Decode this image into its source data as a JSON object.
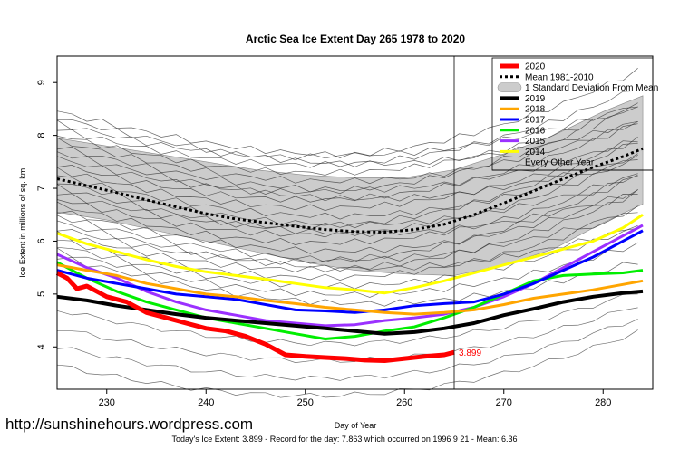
{
  "chart_data": {
    "type": "line",
    "title": "Arctic Sea Ice Extent Day 265 1978 to 2020",
    "xlabel": "Day of Year",
    "ylabel": "Ice Extent in millions of sq. km.",
    "xlim": [
      225,
      285
    ],
    "ylim": [
      3.2,
      9.5
    ],
    "xticks": [
      230,
      240,
      250,
      260,
      270,
      280
    ],
    "yticks": [
      4,
      5,
      6,
      7,
      8,
      9
    ],
    "current_day": 265,
    "current_value_label": "3.899",
    "std_band": {
      "name": "1 Standard Deviation From Mean",
      "color": "#cccccc",
      "x": [
        225,
        230,
        235,
        240,
        245,
        250,
        255,
        260,
        265,
        270,
        275,
        280,
        284
      ],
      "lower": [
        6.55,
        6.4,
        6.2,
        6.0,
        5.8,
        5.6,
        5.45,
        5.38,
        5.35,
        5.55,
        5.85,
        6.35,
        6.7
      ],
      "upper": [
        7.95,
        7.8,
        7.65,
        7.5,
        7.35,
        7.25,
        7.2,
        7.2,
        7.35,
        7.65,
        8.0,
        8.45,
        8.75
      ]
    },
    "series": [
      {
        "name": "2020",
        "color": "#ff0000",
        "width": 5,
        "dash": "",
        "x": [
          225,
          226,
          227,
          228,
          230,
          232,
          234,
          236,
          238,
          240,
          242,
          244,
          246,
          248,
          250,
          252,
          254,
          256,
          258,
          260,
          262,
          264,
          265
        ],
        "y": [
          5.4,
          5.3,
          5.1,
          5.15,
          4.95,
          4.85,
          4.65,
          4.55,
          4.45,
          4.35,
          4.3,
          4.2,
          4.05,
          3.85,
          3.82,
          3.8,
          3.78,
          3.75,
          3.74,
          3.78,
          3.82,
          3.85,
          3.899
        ]
      },
      {
        "name": "Mean 1981-2010",
        "color": "#000000",
        "width": 3,
        "dash": "3,3",
        "x": [
          225,
          228,
          231,
          234,
          237,
          240,
          243,
          246,
          249,
          252,
          255,
          258,
          261,
          264,
          267,
          270,
          273,
          276,
          279,
          282,
          284
        ],
        "y": [
          7.18,
          7.05,
          6.92,
          6.78,
          6.65,
          6.52,
          6.42,
          6.35,
          6.28,
          6.22,
          6.18,
          6.17,
          6.22,
          6.32,
          6.5,
          6.72,
          6.95,
          7.18,
          7.4,
          7.6,
          7.75
        ]
      },
      {
        "name": "2019",
        "color": "#000000",
        "width": 4,
        "dash": "",
        "x": [
          225,
          228,
          231,
          234,
          237,
          240,
          243,
          246,
          249,
          252,
          255,
          258,
          261,
          264,
          267,
          270,
          273,
          276,
          279,
          282,
          284
        ],
        "y": [
          4.95,
          4.88,
          4.78,
          4.7,
          4.62,
          4.55,
          4.5,
          4.45,
          4.4,
          4.35,
          4.3,
          4.25,
          4.28,
          4.35,
          4.45,
          4.6,
          4.72,
          4.85,
          4.95,
          5.02,
          5.05
        ]
      },
      {
        "name": "2018",
        "color": "#ffa500",
        "width": 3,
        "dash": "",
        "x": [
          225,
          228,
          231,
          234,
          237,
          240,
          243,
          246,
          249,
          252,
          255,
          258,
          261,
          264,
          267,
          270,
          273,
          276,
          279,
          282,
          284
        ],
        "y": [
          5.55,
          5.45,
          5.35,
          5.2,
          5.1,
          5.0,
          4.95,
          4.88,
          4.82,
          4.75,
          4.7,
          4.65,
          4.62,
          4.65,
          4.7,
          4.8,
          4.92,
          5.0,
          5.08,
          5.18,
          5.25
        ]
      },
      {
        "name": "2017",
        "color": "#0000ff",
        "width": 3,
        "dash": "",
        "x": [
          225,
          228,
          231,
          234,
          237,
          240,
          243,
          246,
          249,
          252,
          255,
          258,
          261,
          264,
          267,
          270,
          273,
          276,
          279,
          282,
          284
        ],
        "y": [
          5.45,
          5.3,
          5.2,
          5.1,
          5.0,
          4.95,
          4.9,
          4.8,
          4.7,
          4.68,
          4.65,
          4.7,
          4.78,
          4.82,
          4.85,
          5.0,
          5.2,
          5.45,
          5.7,
          6.0,
          6.2
        ]
      },
      {
        "name": "2016",
        "color": "#00ee00",
        "width": 3,
        "dash": "",
        "x": [
          225,
          228,
          231,
          234,
          237,
          240,
          243,
          246,
          249,
          252,
          255,
          258,
          261,
          264,
          267,
          270,
          273,
          276,
          279,
          282,
          284
        ],
        "y": [
          5.6,
          5.3,
          5.05,
          4.85,
          4.7,
          4.55,
          4.45,
          4.35,
          4.25,
          4.15,
          4.2,
          4.3,
          4.38,
          4.55,
          4.75,
          5.0,
          5.25,
          5.35,
          5.38,
          5.4,
          5.45
        ]
      },
      {
        "name": "2015",
        "color": "#9b30ff",
        "width": 3,
        "dash": "",
        "x": [
          225,
          228,
          231,
          234,
          237,
          240,
          243,
          246,
          249,
          252,
          255,
          258,
          261,
          264,
          267,
          270,
          273,
          276,
          279,
          282,
          284
        ],
        "y": [
          5.75,
          5.5,
          5.3,
          5.05,
          4.85,
          4.7,
          4.6,
          4.5,
          4.45,
          4.4,
          4.42,
          4.5,
          4.55,
          4.62,
          4.75,
          4.95,
          5.2,
          5.5,
          5.8,
          6.1,
          6.3
        ]
      },
      {
        "name": "2014",
        "color": "#ffff00",
        "width": 3,
        "dash": "",
        "x": [
          225,
          228,
          231,
          234,
          237,
          240,
          243,
          246,
          249,
          252,
          255,
          258,
          261,
          264,
          267,
          270,
          273,
          276,
          279,
          282,
          284
        ],
        "y": [
          6.15,
          5.95,
          5.8,
          5.65,
          5.52,
          5.42,
          5.35,
          5.28,
          5.2,
          5.12,
          5.08,
          5.02,
          5.12,
          5.25,
          5.4,
          5.55,
          5.7,
          5.85,
          6.0,
          6.25,
          6.5
        ]
      }
    ],
    "legend_placement": "top-right",
    "legend": [
      {
        "label": "2020",
        "color": "#ff0000",
        "kind": "line",
        "width": 5
      },
      {
        "label": "Mean 1981-2010",
        "color": "#000000",
        "kind": "dash",
        "width": 3
      },
      {
        "label": "1 Standard Deviation From Mean",
        "color": "#cccccc",
        "kind": "box"
      },
      {
        "label": "2019",
        "color": "#000000",
        "kind": "line",
        "width": 4
      },
      {
        "label": "2018",
        "color": "#ffa500",
        "kind": "line",
        "width": 3
      },
      {
        "label": "2017",
        "color": "#0000ff",
        "kind": "line",
        "width": 3
      },
      {
        "label": "2016",
        "color": "#00ee00",
        "kind": "line",
        "width": 3
      },
      {
        "label": "2015",
        "color": "#9b30ff",
        "kind": "line",
        "width": 3
      },
      {
        "label": "2014",
        "color": "#ffff00",
        "kind": "line",
        "width": 3
      },
      {
        "label": "Every Other Year",
        "color": "#000000",
        "kind": "none"
      }
    ]
  },
  "watermark": "http://sunshinehours.wordpress.com",
  "footer": "Today's Ice Extent: 3.899  - Record for the day: 7.863 which occurred on 1996 9 21  - Mean: 6.36"
}
